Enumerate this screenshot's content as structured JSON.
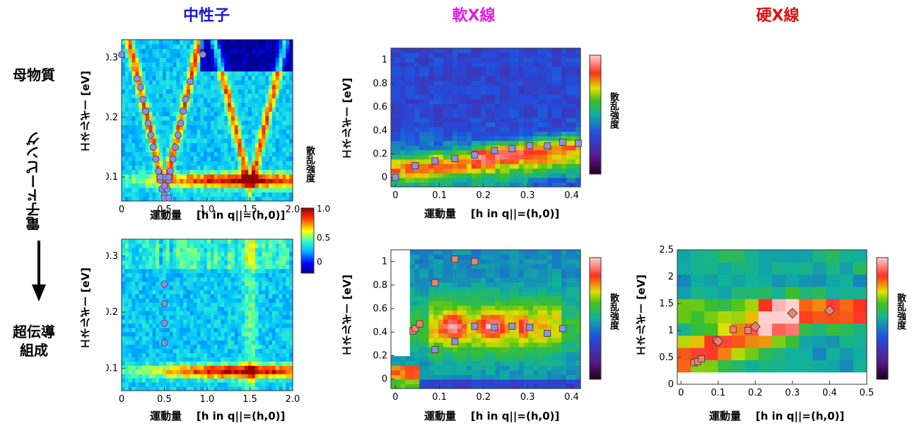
{
  "headers": {
    "neutron": "中性子",
    "soft": "軟X線",
    "hard": "硬X線"
  },
  "header_colors": {
    "neutron": "#1a1adb",
    "soft": "#e01ee0",
    "hard": "#e01010"
  },
  "rows": {
    "parent": "母物質",
    "doping": "電子ドーピング",
    "super_line1": "超伝導",
    "super_line2": "組成"
  },
  "labels": {
    "y_energy": "エネルギー [eV]",
    "x_momentum": "運動量",
    "x_neutron": "[h in q||=(h,0)]",
    "x_xray": "[h in q||=(h,0)]",
    "intensity": "散乱強度"
  },
  "neutron_colorbar": {
    "ticks": [
      "1.0",
      "0.5",
      "0"
    ]
  },
  "chart_data": [
    {
      "id": "neutron-parent",
      "type": "heatmap",
      "xlim": [
        0,
        2.0
      ],
      "ylim": [
        0.06,
        0.33
      ],
      "xticks": [
        "0",
        "0.5",
        "1.0",
        "1.5",
        "2.0"
      ],
      "yticks": [
        "0.1",
        "0.2",
        "0.3"
      ],
      "yticks_v": [
        0.1,
        0.2,
        0.3
      ],
      "points": [
        [
          0.0,
          0.305
        ],
        [
          0.18,
          0.265
        ],
        [
          0.22,
          0.25
        ],
        [
          0.25,
          0.23
        ],
        [
          0.28,
          0.21
        ],
        [
          0.31,
          0.19
        ],
        [
          0.34,
          0.17
        ],
        [
          0.37,
          0.15
        ],
        [
          0.4,
          0.13
        ],
        [
          0.43,
          0.11
        ],
        [
          0.45,
          0.095
        ],
        [
          0.47,
          0.08
        ],
        [
          0.5,
          0.07
        ],
        [
          0.53,
          0.08
        ],
        [
          0.55,
          0.095
        ],
        [
          0.57,
          0.11
        ],
        [
          0.6,
          0.13
        ],
        [
          0.63,
          0.15
        ],
        [
          0.66,
          0.17
        ],
        [
          0.69,
          0.19
        ],
        [
          0.72,
          0.21
        ],
        [
          0.75,
          0.23
        ],
        [
          0.8,
          0.26
        ],
        [
          0.95,
          0.305
        ],
        [
          0.5,
          0.1
        ],
        [
          0.45,
          0.1
        ],
        [
          0.55,
          0.1
        ],
        [
          0.5,
          0.085
        ],
        [
          0.5,
          0.065
        ],
        [
          0.55,
          0.065
        ]
      ]
    },
    {
      "id": "neutron-super",
      "type": "heatmap",
      "xlim": [
        0,
        2.0
      ],
      "ylim": [
        0.06,
        0.33
      ],
      "xticks": [
        "0",
        "0.5",
        "1.0",
        "1.5",
        "2.0"
      ],
      "yticks": [
        "0.1",
        "0.2",
        "0.3"
      ],
      "yticks_v": [
        0.1,
        0.2,
        0.3
      ],
      "points": [
        [
          0.5,
          0.25
        ],
        [
          0.5,
          0.215
        ],
        [
          0.5,
          0.18
        ],
        [
          0.5,
          0.145
        ]
      ]
    },
    {
      "id": "soft-parent",
      "type": "heatmap",
      "xlim": [
        -0.01,
        0.42
      ],
      "ylim": [
        -0.08,
        1.1
      ],
      "xticks": [
        "0",
        "0.1",
        "0.2",
        "0.3",
        "0.4"
      ],
      "xticks_v": [
        0,
        0.1,
        0.2,
        0.3,
        0.4
      ],
      "yticks": [
        "0",
        "0.2",
        "0.4",
        "0.6",
        "0.8",
        "1"
      ],
      "yticks_v": [
        0,
        0.2,
        0.4,
        0.6,
        0.8,
        1
      ],
      "points": [
        [
          0.0,
          0.0
        ],
        [
          0.045,
          0.1
        ],
        [
          0.09,
          0.14
        ],
        [
          0.135,
          0.16
        ],
        [
          0.18,
          0.19
        ],
        [
          0.225,
          0.23
        ],
        [
          0.265,
          0.245
        ],
        [
          0.305,
          0.27
        ],
        [
          0.345,
          0.27
        ],
        [
          0.38,
          0.3
        ],
        [
          0.415,
          0.29
        ]
      ]
    },
    {
      "id": "soft-super",
      "type": "heatmap",
      "xlim": [
        -0.01,
        0.42
      ],
      "ylim": [
        -0.08,
        1.1
      ],
      "xticks": [
        "0",
        "0.1",
        "0.2",
        "0.3",
        "0.4"
      ],
      "xticks_v": [
        0,
        0.1,
        0.2,
        0.3,
        0.4
      ],
      "yticks": [
        "0",
        "0.2",
        "0.4",
        "0.6",
        "0.8",
        "1"
      ],
      "yticks_v": [
        0,
        0.2,
        0.4,
        0.6,
        0.8,
        1
      ],
      "points_red": [
        [
          0.04,
          0.41
        ],
        [
          0.045,
          0.43
        ],
        [
          0.055,
          0.47
        ],
        [
          0.09,
          0.82
        ],
        [
          0.135,
          1.02
        ],
        [
          0.18,
          1.0
        ]
      ],
      "points_blue": [
        [
          0.09,
          0.25
        ],
        [
          0.135,
          0.32
        ],
        [
          0.18,
          0.45
        ],
        [
          0.225,
          0.44
        ],
        [
          0.265,
          0.45
        ],
        [
          0.305,
          0.44
        ],
        [
          0.345,
          0.39
        ],
        [
          0.38,
          0.43
        ]
      ]
    },
    {
      "id": "hard-super",
      "type": "heatmap",
      "xlim": [
        -0.01,
        0.5
      ],
      "ylim": [
        0,
        2.5
      ],
      "xticks": [
        "0",
        "0.1",
        "0.2",
        "0.3",
        "0.4",
        "0.5"
      ],
      "xticks_v": [
        0,
        0.1,
        0.2,
        0.3,
        0.4,
        0.5
      ],
      "yticks": [
        "0",
        "0.5",
        "1",
        "1.5",
        "2",
        "2.5"
      ],
      "yticks_v": [
        0,
        0.5,
        1,
        1.5,
        2,
        2.5
      ],
      "points_square": [
        [
          0.035,
          0.4
        ],
        [
          0.045,
          0.42
        ],
        [
          0.055,
          0.47
        ],
        [
          0.095,
          0.82
        ],
        [
          0.14,
          1.02
        ],
        [
          0.18,
          1.0
        ]
      ],
      "points_diamond": [
        [
          0.1,
          0.8
        ],
        [
          0.2,
          1.07
        ],
        [
          0.3,
          1.32
        ],
        [
          0.4,
          1.37
        ]
      ]
    }
  ]
}
